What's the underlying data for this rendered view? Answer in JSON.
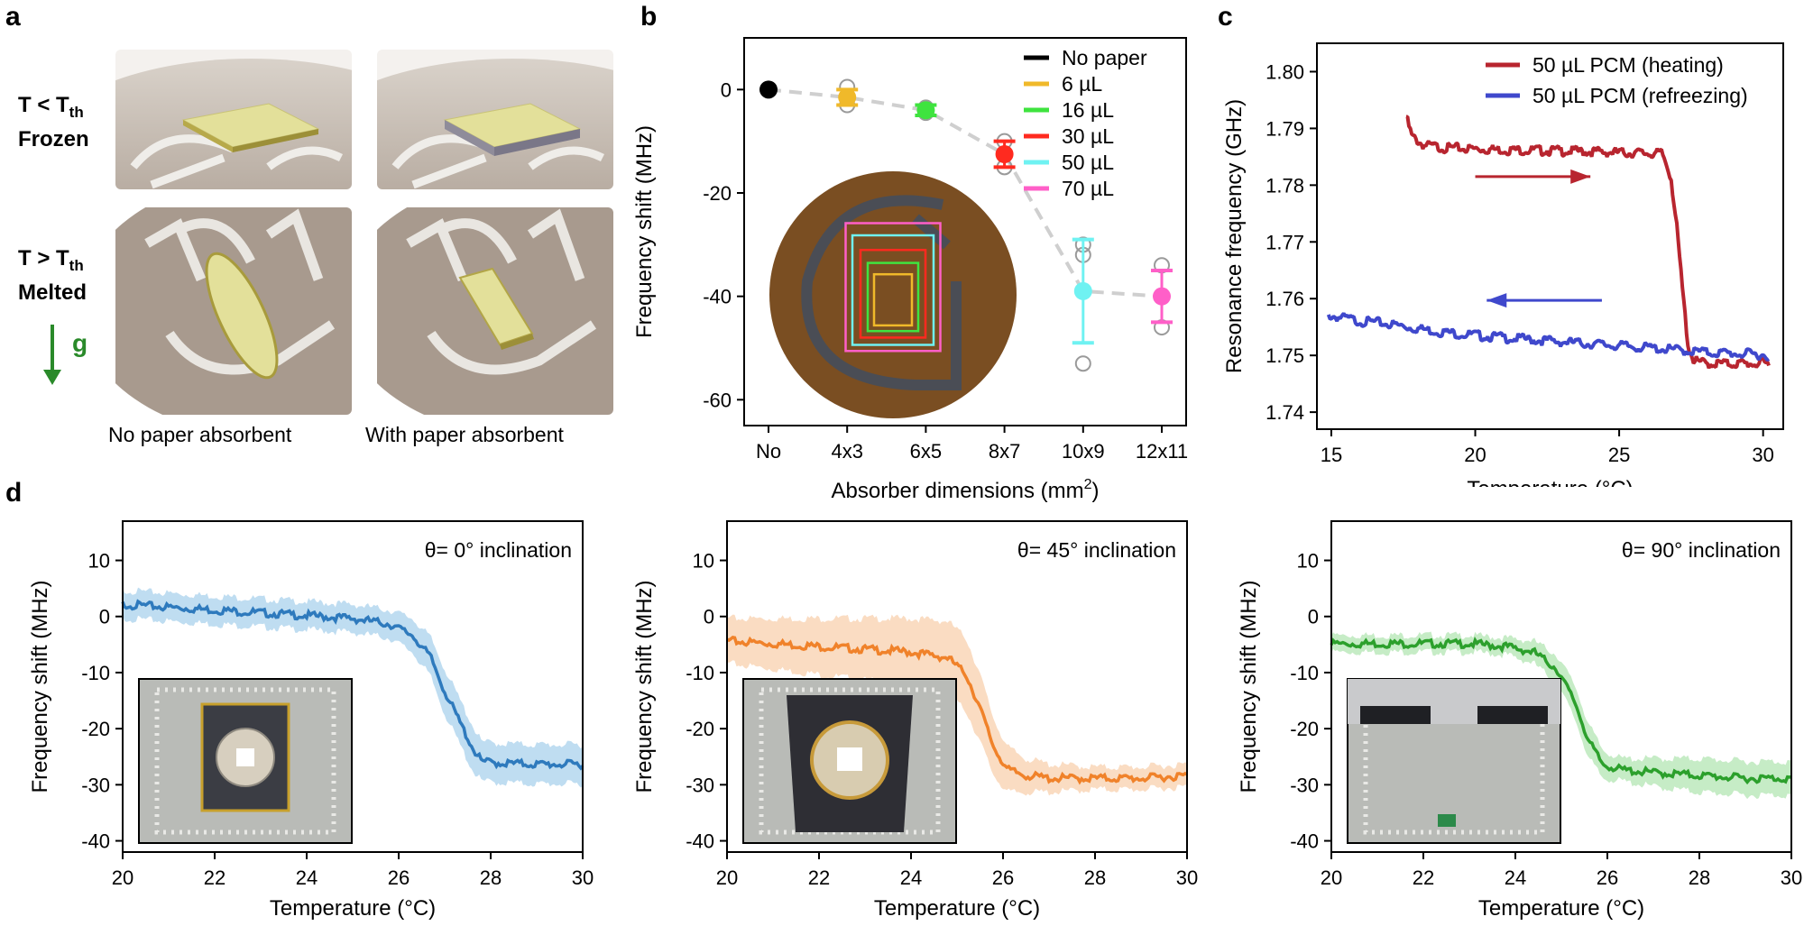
{
  "panel_a": {
    "letter": "a",
    "frozen_label_line1": "T < T",
    "frozen_label_sub": "th",
    "frozen_label_line2": "Frozen",
    "melted_label_line1": "T > T",
    "melted_label_sub": "th",
    "melted_label_line2": "Melted",
    "gravity_label": "g",
    "caption_left": "No paper absorbent",
    "caption_right": "With paper absorbent",
    "colors": {
      "absorbent": "#e3e09a",
      "substrate": "#b5a89c",
      "trace": "#e8e6e2"
    }
  },
  "chart_data": [
    {
      "id": "b",
      "letter": "b",
      "type": "scatter",
      "title": "",
      "xlabel": "Absorber dimensions (mm",
      "xlabel_sup": "2",
      "xlabel_end": ")",
      "ylabel": "Frequency shift (MHz)",
      "categories": [
        "No",
        "4x3",
        "6x5",
        "8x7",
        "10x9",
        "12x11"
      ],
      "ylim": [
        -65,
        10
      ],
      "yticks": [
        0,
        -20,
        -40,
        -60
      ],
      "legend_position": "top-right",
      "series": [
        {
          "name": "No paper",
          "color": "#000000",
          "x": "No",
          "mean": 0,
          "err": 0,
          "samples": []
        },
        {
          "name": "6 µL",
          "color": "#f0b92a",
          "x": "4x3",
          "mean": -1.5,
          "err": 1.5,
          "samples": [
            0.5,
            -1.5,
            -3
          ]
        },
        {
          "name": "16 µL",
          "color": "#3fe33f",
          "x": "6x5",
          "mean": -4,
          "err": 1,
          "samples": [
            -3.5,
            -4.5
          ]
        },
        {
          "name": "30 µL",
          "color": "#ff2a1f",
          "x": "8x7",
          "mean": -12.5,
          "err": 2.5,
          "samples": [
            -10,
            -12.5,
            -15
          ]
        },
        {
          "name": "50 µL",
          "color": "#6ff2f2",
          "x": "10x9",
          "mean": -39,
          "err": 10,
          "samples": [
            -30,
            -32,
            -53
          ]
        },
        {
          "name": "70 µL",
          "color": "#ff5fc8",
          "x": "12x11",
          "mean": -40,
          "err": 5,
          "samples": [
            -34,
            -46
          ]
        }
      ],
      "trend_line": [
        0,
        -1.5,
        -4,
        -12.5,
        -39,
        -40
      ],
      "inset": "circular substrate with nested square absorber outlines"
    },
    {
      "id": "c",
      "letter": "c",
      "type": "line",
      "xlabel": "Temperature (°C)",
      "ylabel": "Resonance frequency (GHz)",
      "xlim": [
        14.5,
        30.7
      ],
      "ylim": [
        1.737,
        1.805
      ],
      "xticks": [
        15,
        20,
        25,
        30
      ],
      "yticks": [
        "1.74",
        "1.75",
        "1.76",
        "1.77",
        "1.78",
        "1.79",
        "1.80"
      ],
      "legend_position": "top-right",
      "series": [
        {
          "name": "50 µL PCM (heating)",
          "color": "#b8252f",
          "x": [
            17.6,
            17.8,
            18.2,
            19,
            21,
            23,
            25,
            26.5,
            26.8,
            27.0,
            27.2,
            27.4,
            27.6,
            28,
            29,
            30.2
          ],
          "y": [
            1.7925,
            1.789,
            1.7875,
            1.787,
            1.7867,
            1.7865,
            1.7862,
            1.786,
            1.782,
            1.773,
            1.762,
            1.752,
            1.7495,
            1.749,
            1.749,
            1.749
          ]
        },
        {
          "name": "50 µL PCM (refreezing)",
          "color": "#3f48cc",
          "x": [
            14.9,
            16,
            17,
            18,
            19,
            20,
            22,
            24,
            26,
            28,
            30.2
          ],
          "y": [
            1.7575,
            1.7565,
            1.756,
            1.7552,
            1.7545,
            1.754,
            1.7532,
            1.7525,
            1.7518,
            1.751,
            1.7505
          ]
        }
      ],
      "arrows": [
        {
          "direction": "right",
          "color": "#b8252f",
          "from_x": 20,
          "to_x": 24,
          "y": 1.7815
        },
        {
          "direction": "left",
          "color": "#3f48cc",
          "from_x": 24.4,
          "to_x": 20.4,
          "y": 1.7597
        }
      ]
    },
    {
      "id": "d1",
      "letter": "d",
      "type": "area",
      "annotation": "θ= 0° inclination",
      "xlabel": "Temperature (°C)",
      "ylabel": "Frequency shift (MHz)",
      "xlim": [
        20,
        30
      ],
      "ylim": [
        -42,
        17
      ],
      "xticks": [
        20,
        22,
        24,
        26,
        28,
        30
      ],
      "yticks": [
        10,
        0,
        -10,
        -20,
        -30,
        -40
      ],
      "color": "#2e7abd",
      "band_color": "#9dcbea",
      "x": [
        20,
        21,
        22,
        23,
        24,
        25,
        25.8,
        26.3,
        26.7,
        27.0,
        27.3,
        27.6,
        27.8,
        28.2,
        29,
        30
      ],
      "y": [
        2.5,
        2,
        1.5,
        1,
        0.5,
        0,
        -1,
        -3,
        -7,
        -13,
        -18,
        -23,
        -25.5,
        -25.8,
        -26,
        -26
      ],
      "band": [
        2.5,
        2.5,
        2.5,
        2.5,
        2.5,
        2.5,
        2.5,
        3,
        3.5,
        4,
        4,
        4,
        3.5,
        3.5,
        3.5,
        3.5
      ]
    },
    {
      "id": "d2",
      "letter": "",
      "type": "area",
      "annotation": "θ= 45° inclination",
      "xlabel": "Temperature (°C)",
      "ylabel": "Frequency shift (MHz)",
      "xlim": [
        20,
        30
      ],
      "ylim": [
        -42,
        17
      ],
      "xticks": [
        20,
        22,
        24,
        26,
        28,
        30
      ],
      "yticks": [
        10,
        0,
        -10,
        -20,
        -30,
        -40
      ],
      "color": "#f0822a",
      "band_color": "#f7c9a2",
      "x": [
        20,
        21,
        22,
        23,
        24,
        24.8,
        25.2,
        25.5,
        25.8,
        26.1,
        26.5,
        27,
        28,
        29,
        30
      ],
      "y": [
        -4,
        -4.5,
        -5,
        -5.5,
        -6,
        -7,
        -10,
        -16,
        -23,
        -27,
        -28,
        -28.5,
        -28.5,
        -28.5,
        -28
      ],
      "band": [
        4,
        4.5,
        5,
        5.5,
        6,
        6.5,
        6.5,
        6,
        5,
        4,
        3,
        2.5,
        2,
        2,
        2
      ]
    },
    {
      "id": "d3",
      "letter": "",
      "type": "area",
      "annotation": "θ= 90° inclination",
      "xlabel": "Temperature (°C)",
      "ylabel": "Frequency shift (MHz)",
      "xlim": [
        20,
        30
      ],
      "ylim": [
        -42,
        17
      ],
      "xticks": [
        20,
        22,
        24,
        26,
        28,
        30
      ],
      "yticks": [
        10,
        0,
        -10,
        -20,
        -30,
        -40
      ],
      "color": "#2ca02c",
      "band_color": "#a7e2a7",
      "x": [
        20,
        21,
        22,
        23,
        23.8,
        24.4,
        24.9,
        25.3,
        25.6,
        25.9,
        26.3,
        27,
        28,
        29,
        30
      ],
      "y": [
        -4.5,
        -4.5,
        -4.5,
        -4.5,
        -5,
        -6,
        -9,
        -15,
        -22,
        -26,
        -27,
        -27.5,
        -28,
        -28.5,
        -28.5
      ],
      "band": [
        1.5,
        1.5,
        1.5,
        1.5,
        1.5,
        2,
        2.5,
        3,
        3,
        2.5,
        2,
        2.5,
        3,
        3,
        3
      ]
    }
  ]
}
